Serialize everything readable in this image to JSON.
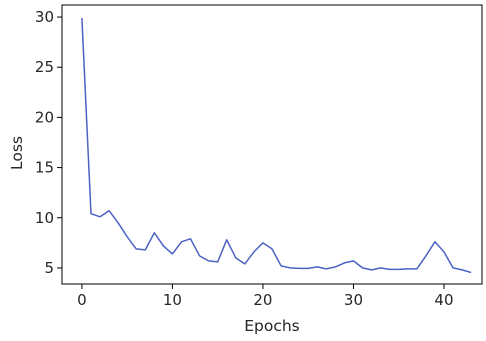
{
  "chart_data": {
    "type": "line",
    "xlabel": "Epochs",
    "ylabel": "Loss",
    "xlim": [
      -2.2,
      44.2
    ],
    "ylim": [
      3.4,
      31.2
    ],
    "xticks": [
      0,
      10,
      20,
      30,
      40
    ],
    "yticks": [
      5,
      10,
      15,
      20,
      25,
      30
    ],
    "xtick_labels": [
      "0",
      "10",
      "20",
      "30",
      "40"
    ],
    "ytick_labels": [
      "5",
      "10",
      "15",
      "20",
      "25",
      "30"
    ],
    "grid": false,
    "legend": "none",
    "series": [
      {
        "color": "#4c62c4",
        "x": [
          0,
          1,
          2,
          3,
          4,
          5,
          6,
          7,
          8,
          9,
          10,
          11,
          12,
          13,
          14,
          15,
          16,
          17,
          18,
          19,
          20,
          21,
          22,
          23,
          24,
          25,
          26,
          27,
          28,
          29,
          30,
          31,
          32,
          33,
          34,
          35,
          36,
          37,
          38,
          39,
          40,
          41,
          42,
          43
        ],
        "y": [
          29.9,
          10.4,
          10.1,
          10.7,
          9.5,
          8.1,
          6.9,
          6.8,
          8.5,
          7.2,
          6.4,
          7.6,
          7.9,
          6.2,
          5.7,
          5.6,
          7.8,
          6.0,
          5.4,
          6.6,
          7.5,
          6.9,
          5.2,
          5.0,
          4.95,
          4.95,
          5.1,
          4.9,
          5.1,
          5.5,
          5.7,
          5.0,
          4.8,
          5.0,
          4.85,
          4.85,
          4.9,
          4.9,
          6.2,
          7.6,
          6.6,
          5.0,
          4.8,
          4.55
        ]
      }
    ]
  }
}
